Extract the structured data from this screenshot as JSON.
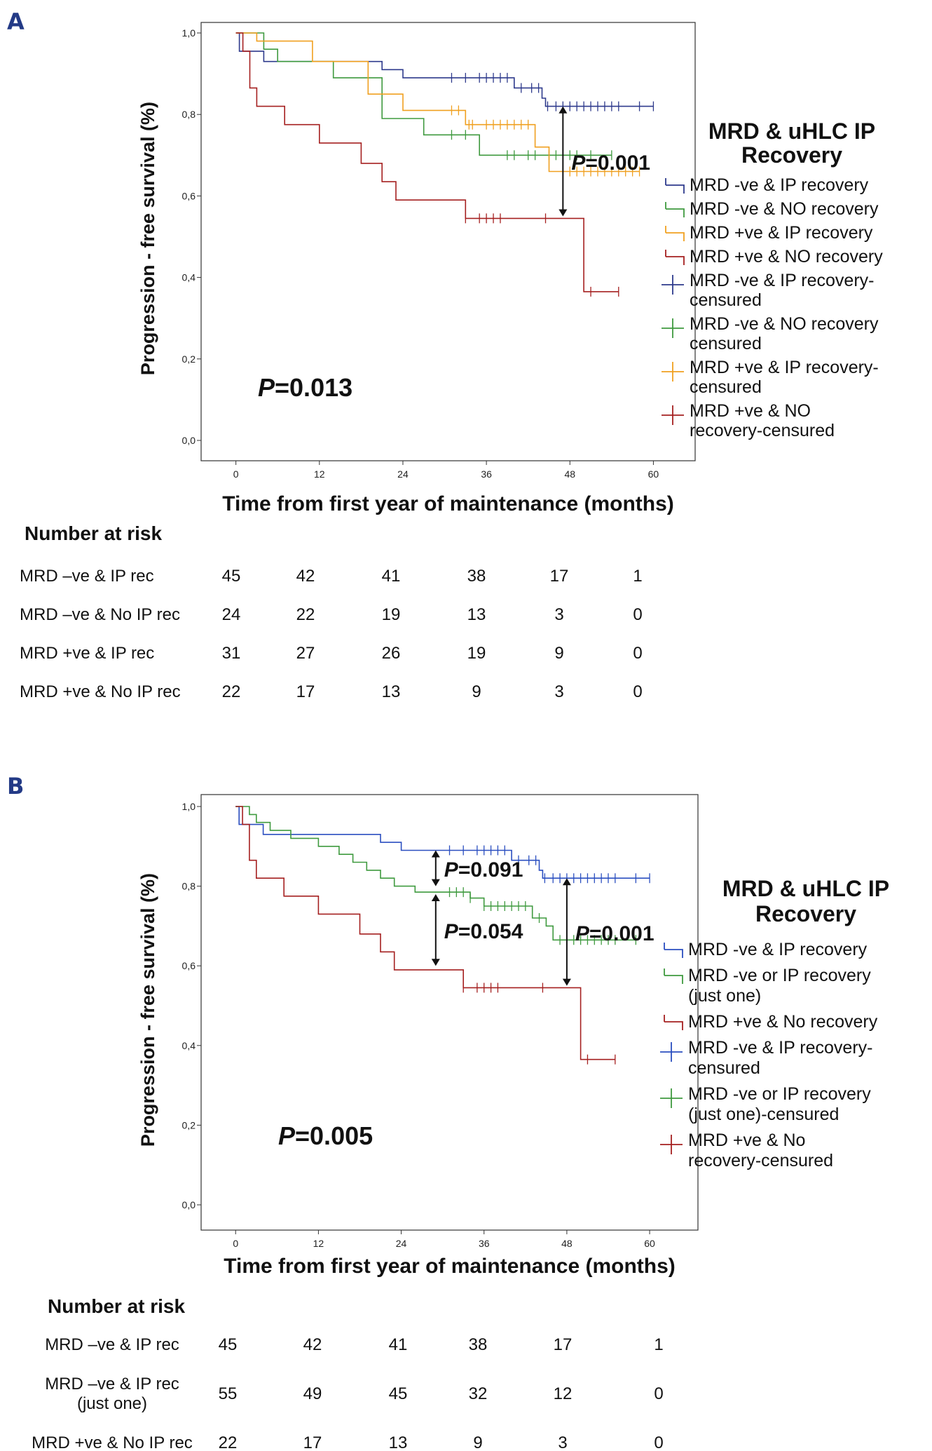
{
  "chart_data": [
    {
      "type": "line",
      "panel": "A",
      "ylabel": "Progression - free survival (%)",
      "xlabel": "Time from first year of maintenance (months)",
      "xlim": [
        -5,
        66
      ],
      "ylim": [
        0,
        1
      ],
      "xticks": [
        "0",
        "12",
        "24",
        "36",
        "48",
        "60"
      ],
      "yticks": [
        "0,0",
        "0,2",
        "0,4",
        "0,6",
        "0,8",
        "1,0"
      ],
      "p_value_main": {
        "label": "P",
        "value": "=0.013"
      },
      "annotations": [
        {
          "label": "P",
          "value": "=0.001",
          "x": 47,
          "y_top": 0.82,
          "y_bottom": 0.55
        }
      ],
      "legend_title": [
        "MRD & uHLC IP",
        "Recovery"
      ],
      "legend": [
        {
          "lines": [
            "MRD -ve & IP recovery"
          ],
          "color": "#2e3a8c",
          "kind": "step"
        },
        {
          "lines": [
            "MRD -ve & NO recovery"
          ],
          "color": "#3f9a3f",
          "kind": "step"
        },
        {
          "lines": [
            "MRD +ve & IP recovery"
          ],
          "color": "#f0a020",
          "kind": "step"
        },
        {
          "lines": [
            "MRD +ve & NO recovery"
          ],
          "color": "#a52020",
          "kind": "step"
        },
        {
          "lines": [
            "MRD -ve & IP recovery-",
            "censured"
          ],
          "color": "#2e3a8c",
          "kind": "cross"
        },
        {
          "lines": [
            "MRD -ve & NO recovery",
            "censured"
          ],
          "color": "#3f9a3f",
          "kind": "cross"
        },
        {
          "lines": [
            "MRD +ve & IP recovery-",
            "censured"
          ],
          "color": "#f0a020",
          "kind": "cross"
        },
        {
          "lines": [
            "MRD +ve & NO",
            "recovery-censured"
          ],
          "color": "#a52020",
          "kind": "cross"
        }
      ],
      "series": [
        {
          "name": "MRD -ve & IP recovery",
          "color": "#2e3a8c",
          "steps": [
            [
              0,
              1.0
            ],
            [
              0.5,
              0.955
            ],
            [
              4,
              0.93
            ],
            [
              21,
              0.91
            ],
            [
              24,
              0.89
            ],
            [
              40,
              0.865
            ],
            [
              44,
              0.84
            ],
            [
              44.5,
              0.82
            ],
            [
              60,
              0.82
            ]
          ],
          "censor": [
            31,
            33,
            35,
            36,
            37,
            38,
            39,
            41,
            42.5,
            43.5,
            44.8,
            46,
            47,
            48,
            49,
            50,
            51,
            52,
            53,
            54,
            55,
            58,
            60
          ]
        },
        {
          "name": "MRD -ve & NO recovery",
          "color": "#3f9a3f",
          "steps": [
            [
              0,
              1.0
            ],
            [
              4,
              0.96
            ],
            [
              6,
              0.93
            ],
            [
              14,
              0.89
            ],
            [
              21,
              0.79
            ],
            [
              27,
              0.75
            ],
            [
              35,
              0.7
            ],
            [
              54,
              0.7
            ]
          ],
          "censor": [
            31,
            33,
            39,
            40,
            42,
            43,
            45,
            46,
            48,
            49,
            51,
            54
          ]
        },
        {
          "name": "MRD +ve & IP recovery",
          "color": "#f0a020",
          "steps": [
            [
              0,
              1.0
            ],
            [
              3,
              0.98
            ],
            [
              11,
              0.93
            ],
            [
              19,
              0.85
            ],
            [
              24,
              0.81
            ],
            [
              33,
              0.775
            ],
            [
              43,
              0.72
            ],
            [
              45,
              0.66
            ],
            [
              58,
              0.66
            ]
          ],
          "censor": [
            31,
            32,
            33.5,
            34,
            36,
            37,
            38,
            39,
            40,
            41,
            42,
            47,
            48,
            49,
            50,
            51,
            52,
            53,
            54,
            55,
            56,
            57,
            58
          ]
        },
        {
          "name": "MRD +ve & NO recovery",
          "color": "#a52020",
          "steps": [
            [
              0,
              1.0
            ],
            [
              1,
              0.955
            ],
            [
              2,
              0.865
            ],
            [
              3,
              0.82
            ],
            [
              7,
              0.775
            ],
            [
              12,
              0.73
            ],
            [
              18,
              0.68
            ],
            [
              21,
              0.635
            ],
            [
              23,
              0.59
            ],
            [
              33,
              0.545
            ],
            [
              50,
              0.365
            ],
            [
              55,
              0.365
            ]
          ],
          "censor": [
            33,
            35,
            36,
            37,
            38,
            44.5,
            51,
            55
          ]
        }
      ],
      "risk_table": {
        "title": "Number at risk",
        "rows": [
          {
            "label": "MRD –ve & IP rec",
            "values": [
              "45",
              "42",
              "41",
              "38",
              "17",
              "1"
            ]
          },
          {
            "label": "MRD –ve & No IP rec",
            "values": [
              "24",
              "22",
              "19",
              "13",
              "3",
              "0"
            ]
          },
          {
            "label": "MRD +ve & IP rec",
            "values": [
              "31",
              "27",
              "26",
              "19",
              "9",
              "0"
            ]
          },
          {
            "label": "MRD +ve & No IP rec",
            "values": [
              "22",
              "17",
              "13",
              "9",
              "3",
              "0"
            ]
          }
        ]
      }
    },
    {
      "type": "line",
      "panel": "B",
      "ylabel": "Progression - free survival (%)",
      "xlabel": "Time from first year of maintenance (months)",
      "xlim": [
        -5,
        67
      ],
      "ylim": [
        0,
        1
      ],
      "xticks": [
        "0",
        "12",
        "24",
        "36",
        "48",
        "60"
      ],
      "yticks": [
        "0,0",
        "0,2",
        "0,4",
        "0,6",
        "0,8",
        "1,0"
      ],
      "p_value_main": {
        "label": "P",
        "value": "=0.005"
      },
      "annotations": [
        {
          "label": "P",
          "value": "=0.091",
          "x": 29,
          "y_top": 0.89,
          "y_bottom": 0.8
        },
        {
          "label": "P",
          "value": "=0.054",
          "x": 29,
          "y_top": 0.78,
          "y_bottom": 0.6
        },
        {
          "label": "P",
          "value": "=0.001",
          "x": 48,
          "y_top": 0.82,
          "y_bottom": 0.55
        }
      ],
      "legend_title": [
        "MRD & uHLC IP",
        "Recovery"
      ],
      "legend": [
        {
          "lines": [
            "MRD -ve & IP recovery"
          ],
          "color": "#2b4fc0",
          "kind": "step"
        },
        {
          "lines": [
            "MRD -ve or IP recovery",
            "(just one)"
          ],
          "color": "#3f9a3f",
          "kind": "step"
        },
        {
          "lines": [
            "MRD +ve & No recovery"
          ],
          "color": "#a52020",
          "kind": "step"
        },
        {
          "lines": [
            "MRD -ve & IP recovery-",
            "censured"
          ],
          "color": "#2b4fc0",
          "kind": "cross"
        },
        {
          "lines": [
            "MRD -ve or IP recovery",
            "(just one)-censured"
          ],
          "color": "#3f9a3f",
          "kind": "cross"
        },
        {
          "lines": [
            "MRD +ve & No",
            "recovery-censured"
          ],
          "color": "#a52020",
          "kind": "cross"
        }
      ],
      "series": [
        {
          "name": "MRD -ve & IP recovery",
          "color": "#2b4fc0",
          "steps": [
            [
              0,
              1.0
            ],
            [
              0.5,
              0.955
            ],
            [
              4,
              0.93
            ],
            [
              21,
              0.91
            ],
            [
              24,
              0.89
            ],
            [
              40,
              0.865
            ],
            [
              44,
              0.84
            ],
            [
              44.5,
              0.82
            ],
            [
              60,
              0.82
            ]
          ],
          "censor": [
            31,
            33,
            35,
            36,
            37,
            38,
            39,
            41,
            42.5,
            43.5,
            44.8,
            46,
            47,
            48,
            49,
            50,
            51,
            52,
            53,
            54,
            55,
            58,
            60
          ]
        },
        {
          "name": "MRD -ve or IP recovery (just one)",
          "color": "#3f9a3f",
          "steps": [
            [
              0,
              1.0
            ],
            [
              2,
              0.98
            ],
            [
              3,
              0.96
            ],
            [
              5,
              0.94
            ],
            [
              8,
              0.92
            ],
            [
              12,
              0.9
            ],
            [
              15,
              0.88
            ],
            [
              17,
              0.86
            ],
            [
              19,
              0.84
            ],
            [
              21,
              0.82
            ],
            [
              23,
              0.8
            ],
            [
              26,
              0.785
            ],
            [
              34,
              0.77
            ],
            [
              36,
              0.75
            ],
            [
              43,
              0.72
            ],
            [
              45,
              0.7
            ],
            [
              46,
              0.665
            ],
            [
              58,
              0.665
            ]
          ],
          "censor": [
            31,
            32,
            33,
            34,
            36,
            37,
            38,
            39,
            40,
            41,
            42,
            44,
            47,
            48,
            49,
            50,
            51,
            52,
            53,
            54,
            55,
            58
          ]
        },
        {
          "name": "MRD +ve & No recovery",
          "color": "#a52020",
          "steps": [
            [
              0,
              1.0
            ],
            [
              1,
              0.955
            ],
            [
              2,
              0.865
            ],
            [
              3,
              0.82
            ],
            [
              7,
              0.775
            ],
            [
              12,
              0.73
            ],
            [
              18,
              0.68
            ],
            [
              21,
              0.635
            ],
            [
              23,
              0.59
            ],
            [
              33,
              0.545
            ],
            [
              50,
              0.365
            ],
            [
              55,
              0.365
            ]
          ],
          "censor": [
            33,
            35,
            36,
            37,
            38,
            44.5,
            51,
            55
          ]
        }
      ],
      "risk_table": {
        "title": "Number at risk",
        "rows": [
          {
            "label": "MRD –ve & IP rec",
            "values": [
              "45",
              "42",
              "41",
              "38",
              "17",
              "1"
            ]
          },
          {
            "label": "MRD –ve & IP rec",
            "label2": "(just one)",
            "values": [
              "55",
              "49",
              "45",
              "32",
              "12",
              "0"
            ]
          },
          {
            "label": "MRD +ve & No IP rec",
            "values": [
              "22",
              "17",
              "13",
              "9",
              "3",
              "0"
            ]
          }
        ]
      }
    }
  ]
}
